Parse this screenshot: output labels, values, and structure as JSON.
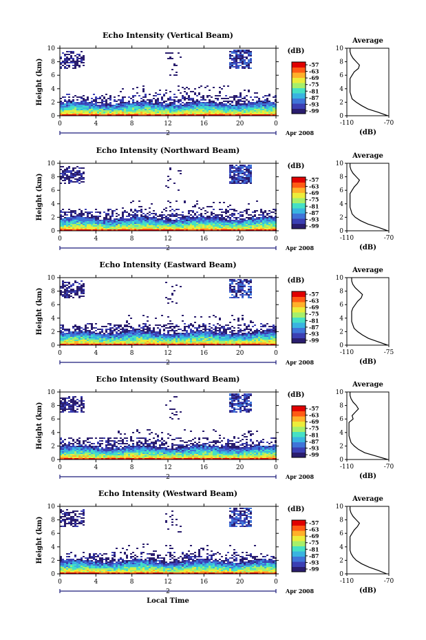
{
  "chart_data": [
    {
      "type": "heatmap",
      "title": "Echo Intensity (Vertical Beam)",
      "ylabel": "Height (km)",
      "x_ticks": [
        "0",
        "4",
        "8",
        "12",
        "16",
        "20",
        "0"
      ],
      "y_ticks": [
        "0",
        "2",
        "4",
        "6",
        "8",
        "10"
      ],
      "xlim": [
        0,
        24
      ],
      "ylim": [
        0,
        10
      ],
      "date_day": "2",
      "date_label": "Apr 2008",
      "colorbar": {
        "unit": "(dB)",
        "ticks": [
          "-57",
          "-63",
          "-69",
          "-75",
          "-81",
          "-87",
          "-93",
          "-99"
        ]
      },
      "profile": {
        "title": "Average",
        "xlabel": "(dB)",
        "xticks": [
          "-110",
          "-70"
        ],
        "xlim": [
          -110,
          -70
        ],
        "heights": [
          0,
          0.5,
          1,
          1.5,
          2,
          2.5,
          3,
          3.5,
          4,
          4.5,
          5,
          5.5,
          6,
          6.5,
          7,
          7.5,
          8,
          8.5,
          9,
          9.5,
          10
        ],
        "values": [
          -71,
          -80,
          -90,
          -96,
          -101,
          -105,
          -106,
          -107,
          -107,
          -107,
          -107,
          -107,
          -105,
          -103,
          -99,
          -98,
          -101,
          -104,
          -106,
          -107,
          -107
        ]
      }
    },
    {
      "type": "heatmap",
      "title": "Echo Intensity (Northward Beam)",
      "ylabel": "Height (km)",
      "x_ticks": [
        "0",
        "4",
        "8",
        "12",
        "16",
        "20",
        "0"
      ],
      "y_ticks": [
        "0",
        "2",
        "4",
        "6",
        "8",
        "10"
      ],
      "xlim": [
        0,
        24
      ],
      "ylim": [
        0,
        10
      ],
      "date_day": "2",
      "date_label": "Apr 2008",
      "colorbar": {
        "unit": "(dB)",
        "ticks": [
          "-57",
          "-63",
          "-69",
          "-75",
          "-81",
          "-87",
          "-93",
          "-99"
        ]
      },
      "profile": {
        "title": "Average",
        "xlabel": "(dB)",
        "xticks": [
          "-110",
          "-70"
        ],
        "xlim": [
          -110,
          -70
        ],
        "heights": [
          0,
          0.5,
          1,
          1.5,
          2,
          2.5,
          3,
          3.5,
          4,
          4.5,
          5,
          5.5,
          6,
          6.5,
          7,
          7.5,
          8,
          8.5,
          9,
          9.5,
          10
        ],
        "values": [
          -71,
          -80,
          -90,
          -97,
          -102,
          -105,
          -106,
          -107,
          -107,
          -107,
          -107,
          -107,
          -105,
          -103,
          -100,
          -98,
          -101,
          -104,
          -106,
          -107,
          -107
        ]
      }
    },
    {
      "type": "heatmap",
      "title": "Echo Intensity (Eastward Beam)",
      "ylabel": "Height (km)",
      "x_ticks": [
        "0",
        "4",
        "8",
        "12",
        "16",
        "20",
        "0"
      ],
      "y_ticks": [
        "0",
        "2",
        "4",
        "6",
        "8",
        "10"
      ],
      "xlim": [
        0,
        24
      ],
      "ylim": [
        0,
        10
      ],
      "date_day": "2",
      "date_label": "Apr 2008",
      "colorbar": {
        "unit": "(dB)",
        "ticks": [
          "-57",
          "-63",
          "-69",
          "-75",
          "-81",
          "-87",
          "-93",
          "-99"
        ]
      },
      "profile": {
        "title": "Average",
        "xlabel": "(dB)",
        "xticks": [
          "-110",
          "-75"
        ],
        "xlim": [
          -110,
          -75
        ],
        "heights": [
          0,
          0.5,
          1,
          1.5,
          2,
          2.5,
          3,
          3.5,
          4,
          4.5,
          5,
          5.5,
          6,
          6.5,
          7,
          7.5,
          8,
          8.5,
          9,
          9.5,
          10
        ],
        "values": [
          -76,
          -84,
          -92,
          -97,
          -101,
          -104,
          -105,
          -106,
          -106,
          -106,
          -106,
          -105,
          -103,
          -101,
          -98,
          -97,
          -100,
          -103,
          -105,
          -106,
          -106
        ]
      }
    },
    {
      "type": "heatmap",
      "title": "Echo Intensity (Southward Beam)",
      "ylabel": "Height (km)",
      "x_ticks": [
        "0",
        "4",
        "8",
        "12",
        "16",
        "20",
        "0"
      ],
      "y_ticks": [
        "0",
        "2",
        "4",
        "6",
        "8",
        "10"
      ],
      "xlim": [
        0,
        24
      ],
      "ylim": [
        0,
        10
      ],
      "date_day": "2",
      "date_label": "Apr 2008",
      "colorbar": {
        "unit": "(dB)",
        "ticks": [
          "-57",
          "-63",
          "-69",
          "-75",
          "-81",
          "-87",
          "-93",
          "-99"
        ]
      },
      "profile": {
        "title": "Average",
        "xlabel": "(dB)",
        "xticks": [
          "-110",
          "-70"
        ],
        "xlim": [
          -110,
          -70
        ],
        "heights": [
          0,
          0.5,
          1,
          1.5,
          2,
          2.5,
          3,
          3.5,
          4,
          4.5,
          5,
          5.5,
          6,
          6.5,
          7,
          7.5,
          8,
          8.5,
          9,
          9.5,
          10
        ],
        "values": [
          -71,
          -82,
          -93,
          -99,
          -103,
          -106,
          -107,
          -108,
          -108,
          -108,
          -108,
          -108,
          -104,
          -105,
          -102,
          -99,
          -101,
          -104,
          -106,
          -107,
          -107
        ]
      }
    },
    {
      "type": "heatmap",
      "title": "Echo Intensity (Westward Beam)",
      "ylabel": "Height (km)",
      "xlabel": "Local Time",
      "x_ticks": [
        "0",
        "4",
        "8",
        "12",
        "16",
        "20",
        "0"
      ],
      "y_ticks": [
        "0",
        "2",
        "4",
        "6",
        "8",
        "10"
      ],
      "xlim": [
        0,
        24
      ],
      "ylim": [
        0,
        10
      ],
      "date_day": "2",
      "date_label": "Apr 2008",
      "colorbar": {
        "unit": "(dB)",
        "ticks": [
          "-57",
          "-63",
          "-69",
          "-75",
          "-81",
          "-87",
          "-93",
          "-99"
        ]
      },
      "profile": {
        "title": "Average",
        "xlabel": "(dB)",
        "xticks": [
          "-110",
          "-70"
        ],
        "xlim": [
          -110,
          -70
        ],
        "heights": [
          0,
          0.5,
          1,
          1.5,
          2,
          2.5,
          3,
          3.5,
          4,
          4.5,
          5,
          5.5,
          6,
          6.5,
          7,
          7.5,
          8,
          8.5,
          9,
          9.5,
          10
        ],
        "values": [
          -72,
          -80,
          -89,
          -96,
          -101,
          -104,
          -106,
          -107,
          -107,
          -107,
          -107,
          -107,
          -105,
          -103,
          -100,
          -98,
          -101,
          -104,
          -106,
          -107,
          -107
        ]
      }
    }
  ],
  "colors": {
    "colormap": [
      "#2a1d6e",
      "#3b3fb3",
      "#3f74d8",
      "#39b4e0",
      "#45e0c4",
      "#a6ef6a",
      "#ecec3a",
      "#ffb02a",
      "#ff5a14",
      "#e00000"
    ],
    "axis": "#000000",
    "date_bar": "#1b1b7a"
  }
}
